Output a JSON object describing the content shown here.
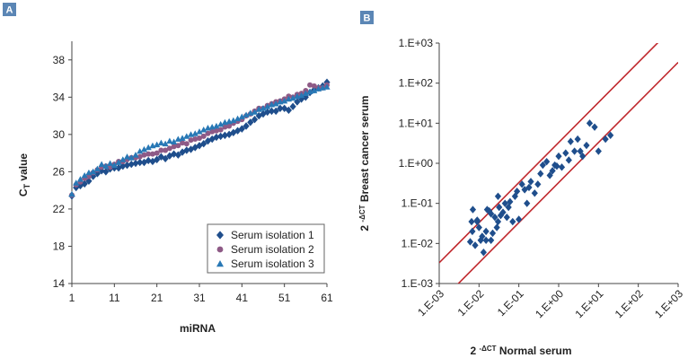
{
  "panels": {
    "a_label": "A",
    "b_label": "B"
  },
  "chart_data": [
    {
      "type": "scatter",
      "xlabel": "miRNA",
      "ylabel_main": "C",
      "ylabel_sub": "T",
      "ylabel_rest": " value",
      "xlim": [
        1,
        61
      ],
      "ylim": [
        14,
        40
      ],
      "xticks": [
        1,
        11,
        21,
        31,
        41,
        51,
        61
      ],
      "yticks": [
        14,
        18,
        22,
        26,
        30,
        34,
        38
      ],
      "legend_position": "bottom-right",
      "colors": {
        "s1": "#1f4e8c",
        "s2": "#8e5a86",
        "s3": "#2878b5"
      },
      "series": [
        {
          "name": "Serum isolation 1",
          "marker": "diamond",
          "x": [
            1,
            2,
            3,
            4,
            5,
            6,
            7,
            8,
            9,
            10,
            11,
            12,
            13,
            14,
            15,
            16,
            17,
            18,
            19,
            20,
            21,
            22,
            23,
            24,
            25,
            26,
            27,
            28,
            29,
            30,
            31,
            32,
            33,
            34,
            35,
            36,
            37,
            38,
            39,
            40,
            41,
            42,
            43,
            44,
            45,
            46,
            47,
            48,
            49,
            50,
            51,
            52,
            53,
            54,
            55,
            56,
            57,
            58,
            59,
            60,
            61
          ],
          "y": [
            23.4,
            24.3,
            24.5,
            24.7,
            25.0,
            25.5,
            25.8,
            26.1,
            26.0,
            26.3,
            26.4,
            26.4,
            26.6,
            26.7,
            26.8,
            26.9,
            27.0,
            27.0,
            27.2,
            27.1,
            27.3,
            27.6,
            27.4,
            27.7,
            27.9,
            27.8,
            28.1,
            28.3,
            28.4,
            28.6,
            28.8,
            29.0,
            29.3,
            29.5,
            29.7,
            29.8,
            29.9,
            30.0,
            30.2,
            30.4,
            30.6,
            30.9,
            31.3,
            31.6,
            32.0,
            32.2,
            32.4,
            32.5,
            32.5,
            32.8,
            32.8,
            32.6,
            33.0,
            33.5,
            33.8,
            34.0,
            34.5,
            34.8,
            35.0,
            35.2,
            35.6
          ]
        },
        {
          "name": "Serum isolation 2",
          "marker": "circle",
          "x": [
            1,
            2,
            3,
            4,
            5,
            6,
            7,
            8,
            9,
            10,
            11,
            12,
            13,
            14,
            15,
            16,
            17,
            18,
            19,
            20,
            21,
            22,
            23,
            24,
            25,
            26,
            27,
            28,
            29,
            30,
            31,
            32,
            33,
            34,
            35,
            36,
            37,
            38,
            39,
            40,
            41,
            42,
            43,
            44,
            45,
            46,
            47,
            48,
            49,
            50,
            51,
            52,
            53,
            54,
            55,
            56,
            57,
            58,
            59,
            60,
            61
          ],
          "y": [
            23.5,
            24.6,
            24.9,
            25.3,
            25.5,
            25.9,
            26.2,
            26.5,
            26.6,
            26.5,
            26.8,
            27.1,
            27.1,
            27.3,
            27.5,
            27.5,
            27.6,
            27.8,
            27.9,
            27.9,
            28.0,
            28.3,
            28.3,
            28.5,
            28.7,
            28.8,
            29.1,
            29.0,
            29.4,
            29.5,
            29.6,
            29.8,
            30.1,
            30.3,
            30.4,
            30.5,
            30.8,
            30.9,
            31.2,
            31.4,
            31.6,
            32.0,
            32.2,
            32.5,
            32.8,
            32.8,
            33.1,
            33.3,
            33.5,
            33.6,
            33.8,
            34.1,
            34.0,
            34.3,
            34.4,
            34.7,
            35.3,
            35.2,
            35.0,
            35.0,
            35.3
          ]
        },
        {
          "name": "Serum isolation 3",
          "marker": "triangle",
          "x": [
            1,
            2,
            3,
            4,
            5,
            6,
            7,
            8,
            9,
            10,
            11,
            12,
            13,
            14,
            15,
            16,
            17,
            18,
            19,
            20,
            21,
            22,
            23,
            24,
            25,
            26,
            27,
            28,
            29,
            30,
            31,
            32,
            33,
            34,
            35,
            36,
            37,
            38,
            39,
            40,
            41,
            42,
            43,
            44,
            45,
            46,
            47,
            48,
            49,
            50,
            51,
            52,
            53,
            54,
            55,
            56,
            57,
            58,
            59,
            60,
            61
          ],
          "y": [
            23.6,
            24.8,
            25.2,
            25.6,
            25.9,
            26.0,
            26.3,
            26.8,
            26.6,
            26.9,
            26.7,
            27.0,
            27.3,
            27.6,
            27.5,
            27.8,
            28.2,
            28.4,
            28.6,
            28.8,
            28.9,
            29.1,
            29.0,
            29.3,
            29.2,
            29.5,
            29.6,
            29.8,
            30.0,
            30.1,
            30.3,
            30.5,
            30.7,
            30.8,
            30.9,
            31.1,
            31.3,
            31.4,
            31.5,
            31.7,
            31.9,
            32.1,
            32.3,
            32.4,
            32.7,
            32.8,
            33.0,
            33.2,
            33.3,
            33.5,
            33.6,
            33.8,
            33.9,
            34.1,
            34.2,
            34.4,
            34.6,
            34.7,
            34.9,
            35.0,
            35.1
          ]
        }
      ]
    },
    {
      "type": "scatter",
      "xlabel_main": "2 ",
      "xlabel_sup": "-ΔCT",
      "xlabel_rest": " Normal serum",
      "ylabel_main": "2 ",
      "ylabel_sup": "-ΔCT",
      "ylabel_rest": " Breast cancer serum",
      "scale": "log",
      "xlim": [
        0.001,
        1000
      ],
      "ylim": [
        0.001,
        1000
      ],
      "xtick_labels": [
        "1.E-03",
        "1.E-02",
        "1.E-01",
        "1.E+00",
        "1.E+01",
        "1.E+02",
        "1.E+03"
      ],
      "ytick_labels": [
        "1.E-03",
        "1.E-02",
        "1.E-01",
        "1.E+00",
        "1.E+01",
        "1.E+02",
        "1.E+03"
      ],
      "colors": {
        "points": "#1f4e8c",
        "lines": "#c0282d"
      },
      "reference_lines": [
        {
          "slope": 1,
          "intercept_factor": 3.3
        },
        {
          "slope": 1,
          "intercept_factor": 0.33
        }
      ],
      "points": {
        "x": [
          0.006,
          0.0065,
          0.007,
          0.0068,
          0.008,
          0.009,
          0.01,
          0.011,
          0.012,
          0.013,
          0.015,
          0.016,
          0.018,
          0.02,
          0.022,
          0.025,
          0.028,
          0.03,
          0.032,
          0.035,
          0.04,
          0.045,
          0.05,
          0.055,
          0.06,
          0.07,
          0.08,
          0.09,
          0.1,
          0.12,
          0.14,
          0.16,
          0.18,
          0.2,
          0.25,
          0.3,
          0.35,
          0.4,
          0.5,
          0.6,
          0.7,
          0.8,
          0.9,
          1.0,
          1.2,
          1.5,
          1.8,
          2.0,
          2.5,
          3.0,
          3.5,
          4.0,
          5.0,
          6.0,
          8.0,
          10.0,
          15.0,
          20.0,
          0.015,
          0.02,
          0.03,
          0.009
        ],
        "y": [
          0.011,
          0.035,
          0.07,
          0.02,
          0.009,
          0.035,
          0.025,
          0.012,
          0.015,
          0.006,
          0.02,
          0.07,
          0.065,
          0.055,
          0.018,
          0.045,
          0.025,
          0.035,
          0.08,
          0.05,
          0.06,
          0.1,
          0.045,
          0.08,
          0.11,
          0.035,
          0.15,
          0.2,
          0.04,
          0.3,
          0.22,
          0.1,
          0.25,
          0.35,
          0.18,
          0.3,
          0.55,
          0.9,
          1.1,
          0.5,
          0.65,
          0.9,
          0.85,
          1.5,
          0.8,
          1.8,
          1.2,
          3.5,
          2.0,
          4.0,
          2.0,
          1.5,
          2.8,
          10.0,
          8.0,
          2.0,
          4.0,
          5.0,
          0.012,
          0.012,
          0.15,
          0.038
        ]
      }
    }
  ],
  "legend": {
    "items": [
      {
        "label": "Serum isolation 1"
      },
      {
        "label": "Serum isolation 2"
      },
      {
        "label": "Serum isolation 3"
      }
    ]
  }
}
